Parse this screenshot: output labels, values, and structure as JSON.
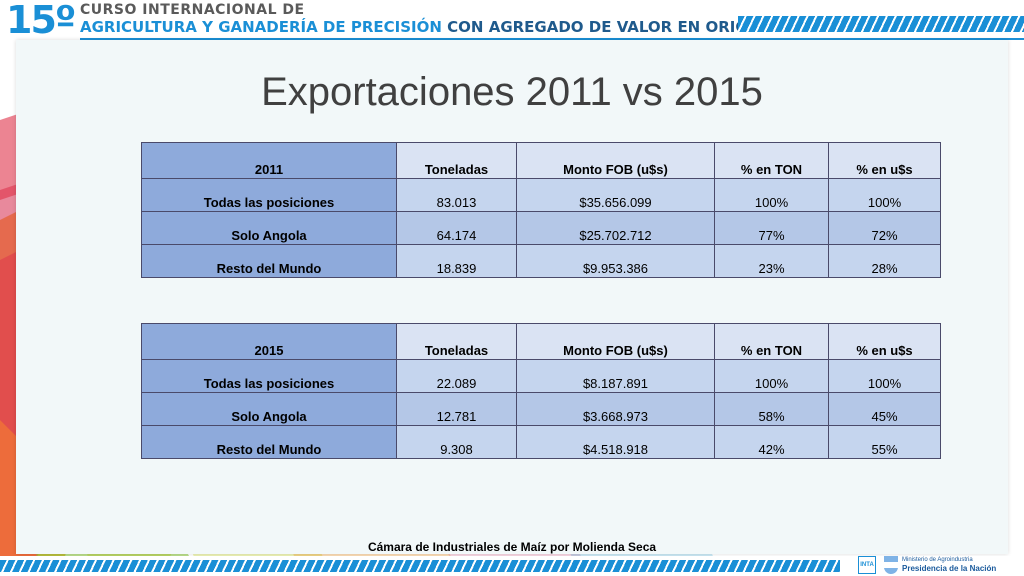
{
  "banner": {
    "number": "15º",
    "line1": "CURSO INTERNACIONAL DE",
    "line2a": "AGRICULTURA Y GANADERÍA DE PRECISIÓN",
    "line2b": "CON AGREGADO DE VALOR EN ORIGEN"
  },
  "title": "Exportaciones 2011 vs 2015",
  "headers": [
    "Toneladas",
    "Monto FOB (u$s)",
    "% en TON",
    "% en u$s"
  ],
  "table2011": {
    "year": "2011",
    "rows": [
      {
        "label": "Todas las posiciones",
        "ton": "83.013",
        "fob": "$35.656.099",
        "pton": "100%",
        "pusd": "100%"
      },
      {
        "label": "Solo Angola",
        "ton": "64.174",
        "fob": "$25.702.712",
        "pton": "77%",
        "pusd": "72%"
      },
      {
        "label": "Resto del Mundo",
        "ton": "18.839",
        "fob": "$9.953.386",
        "pton": "23%",
        "pusd": "28%"
      }
    ]
  },
  "table2015": {
    "year": "2015",
    "rows": [
      {
        "label": "Todas las posiciones",
        "ton": "22.089",
        "fob": "$8.187.891",
        "pton": "100%",
        "pusd": "100%"
      },
      {
        "label": "Solo Angola",
        "ton": "12.781",
        "fob": "$3.668.973",
        "pton": "58%",
        "pusd": "45%"
      },
      {
        "label": "Resto del Mundo",
        "ton": "9.308",
        "fob": "$4.518.918",
        "pton": "42%",
        "pusd": "55%"
      }
    ]
  },
  "footer": "Cámara de Industriales de Maíz por Molienda Seca",
  "logos": {
    "inta": "INTA",
    "ministry_line1": "Ministerio de Agroindustria",
    "ministry_line2": "Presidencia de la Nación"
  },
  "colors": {
    "brand_blue": "#1a8fd6",
    "label_column": "#8eaadb",
    "cell_light": "#c5d5ee",
    "cell_header": "#dae3f3"
  }
}
